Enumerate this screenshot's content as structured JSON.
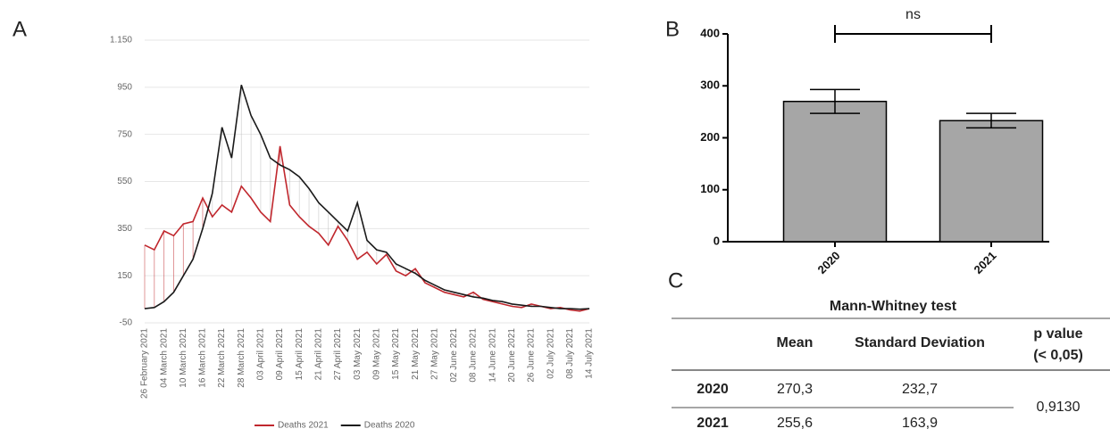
{
  "panel_labels": [
    "A",
    "B",
    "C"
  ],
  "chart_data": [
    {
      "type": "line",
      "categories": [
        "26 February 2021",
        null,
        "04 March 2021",
        null,
        "10 March 2021",
        null,
        "16 March 2021",
        null,
        "22 March 2021",
        null,
        "28 March 2021",
        null,
        "03 April 2021",
        null,
        "09 April 2021",
        null,
        "15 April 2021",
        null,
        "21 April 2021",
        null,
        "27 April 2021",
        null,
        "03 May 2021",
        null,
        "09 May 2021",
        null,
        "15 May 2021",
        null,
        "21 May 2021",
        null,
        "27 May 2021",
        null,
        "02 June 2021",
        null,
        "08 June 2021",
        null,
        "14 June 2021",
        null,
        "20 June 2021",
        null,
        "26 June 2021",
        null,
        "02 July 2021",
        null,
        "08 July 2021",
        null,
        "14 July 2021"
      ],
      "series": [
        {
          "name": "Deaths 2021",
          "color": "#c0272d",
          "values": [
            280,
            260,
            340,
            320,
            370,
            380,
            480,
            400,
            450,
            420,
            530,
            480,
            420,
            380,
            700,
            450,
            400,
            360,
            330,
            280,
            360,
            300,
            220,
            250,
            200,
            240,
            170,
            150,
            180,
            120,
            100,
            80,
            70,
            60,
            80,
            50,
            40,
            30,
            20,
            15,
            30,
            20,
            10,
            15,
            5,
            0,
            10
          ]
        },
        {
          "name": "Deaths 2020",
          "color": "#1a1a1a",
          "values": [
            10,
            15,
            40,
            80,
            150,
            220,
            350,
            500,
            780,
            650,
            960,
            830,
            750,
            650,
            620,
            600,
            570,
            520,
            460,
            420,
            380,
            340,
            460,
            300,
            260,
            250,
            200,
            180,
            160,
            130,
            110,
            90,
            80,
            70,
            60,
            55,
            45,
            40,
            30,
            25,
            20,
            20,
            15,
            10,
            10,
            8,
            10
          ]
        }
      ],
      "ylim": [
        -50,
        1150
      ],
      "yticks": [
        -50,
        150,
        350,
        550,
        750,
        950,
        {
          "value": 1150,
          "label": "1.150"
        }
      ],
      "grid": true,
      "legend": "bottom"
    },
    {
      "type": "bar",
      "categories": [
        "2020",
        "2021"
      ],
      "values": [
        270,
        233
      ],
      "errors": [
        23,
        14
      ],
      "color": "#a6a6a6",
      "ylim": [
        0,
        400
      ],
      "yticks": [
        0,
        100,
        200,
        300,
        400
      ],
      "annotation": "ns"
    }
  ],
  "table": {
    "title": "Mann-Whitney test",
    "header": [
      "Mean",
      "Standard Deviation",
      "p value",
      "(< 0,05)"
    ],
    "rows": [
      [
        "2020",
        "270,3",
        "232,7"
      ],
      [
        "2021",
        "255,6",
        "163,9"
      ]
    ],
    "p_value": "0,9130"
  }
}
